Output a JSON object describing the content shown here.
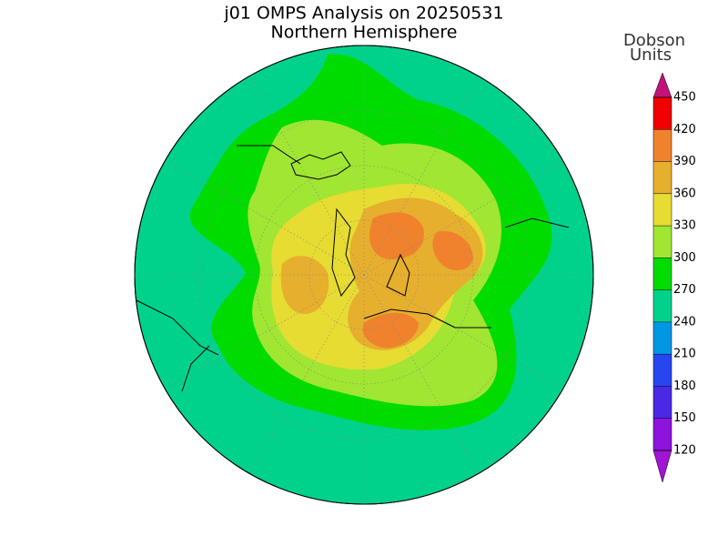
{
  "title": "j01 OMPS Analysis on 20250531",
  "subtitle": "Northern Hemisphere",
  "colorbar": {
    "label_lines": [
      "Dobson",
      "Units"
    ],
    "ticks": [
      120,
      150,
      180,
      210,
      240,
      270,
      300,
      330,
      360,
      390,
      420,
      450
    ],
    "colors": [
      "#a014d2",
      "#8c14dc",
      "#4b28e6",
      "#2846f0",
      "#0096e6",
      "#00d28c",
      "#00dc00",
      "#a0e632",
      "#e6dc32",
      "#e6af2d",
      "#f0822d",
      "#f00000",
      "#c0147a"
    ]
  }
}
